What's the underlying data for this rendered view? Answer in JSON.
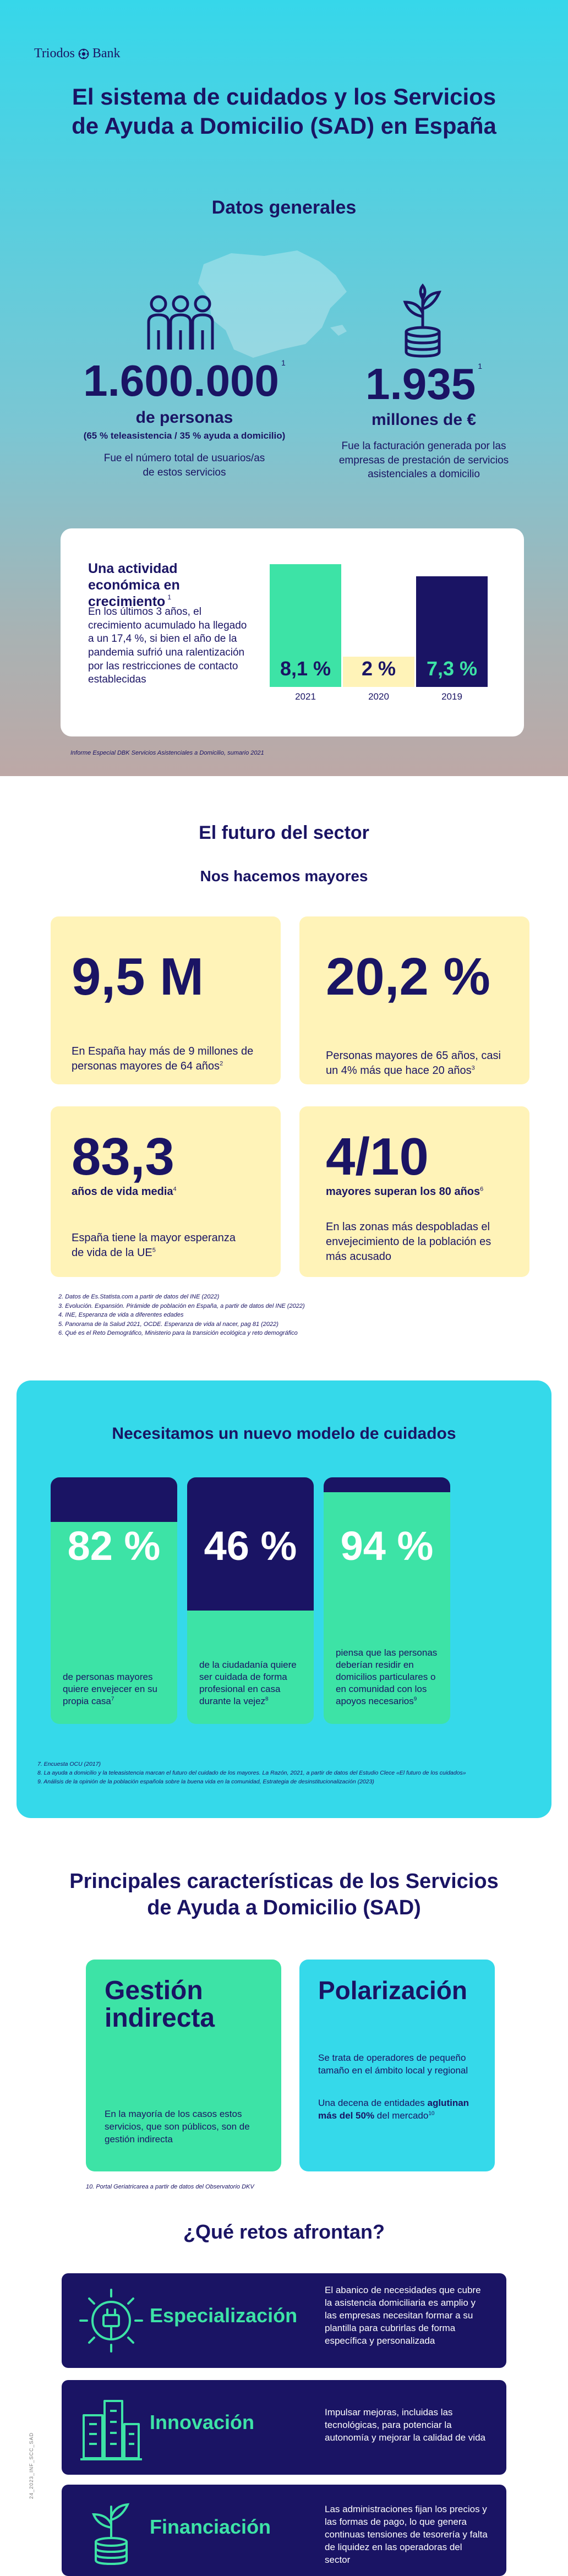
{
  "brand": {
    "name": "Triodos",
    "name2": "Bank"
  },
  "hero": {
    "title_line1": "El sistema de cuidados y los Servicios",
    "title_line2": "de Ayuda a Domicilio (SAD) en España"
  },
  "general": {
    "heading": "Datos generales",
    "users": {
      "value": "1.600.000",
      "sup": "1",
      "unit": "de personas",
      "breakdown": "(65 % teleasistencia / 35 % ayuda a domicilio)",
      "desc_line1": "Fue el número total de usuarios/as",
      "desc_line2": "de estos servicios"
    },
    "revenue": {
      "value": "1.935",
      "sup": "1",
      "unit": "millones de €",
      "desc_line1": "Fue la facturación generada por las",
      "desc_line2": "empresas de prestación de servicios",
      "desc_line3": "asistenciales a domicilio"
    },
    "activity": {
      "title": "Una actividad económica en crecimiento",
      "title_sup": "1",
      "desc": "En los últimos 3 años, el crecimiento acumulado ha llegado a un 17,4 %, si bien el año de la pandemia sufrió una ralentización por las restricciones de contacto establecidas"
    },
    "source": "Informe Especial DBK Servicios Asistenciales a Domicilio, sumario 2021"
  },
  "chart_data": {
    "type": "bar",
    "categories": [
      "2021",
      "2020",
      "2019"
    ],
    "values": [
      8.1,
      2,
      7.3
    ],
    "labels": [
      "8,1 %",
      "2 %",
      "7,3 %"
    ],
    "colors": [
      "#3de3a6",
      "#fff3b8",
      "#1a1464"
    ],
    "label_colors": [
      "#1a1464",
      "#1a1464",
      "#3de3a6"
    ],
    "ylim": [
      0,
      9
    ]
  },
  "future": {
    "heading": "El futuro del sector",
    "subheading": "Nos hacemos mayores",
    "cards": [
      {
        "num": "9,5 M",
        "bold": "",
        "sup": "2",
        "text": "En España hay más de 9 millones de personas mayores de 64 años"
      },
      {
        "num": "20,2 %",
        "bold": "",
        "sup": "3",
        "text": "Personas mayores de 65 años, casi un 4% más que hace 20 años"
      },
      {
        "num": "83,3",
        "bold": "años de vida media",
        "bold_sup": "4",
        "sup": "5",
        "text": "España tiene la mayor esperanza de vida de la UE"
      },
      {
        "num": "4/10",
        "bold": "mayores superan los 80 años",
        "bold_sup": "6",
        "sup": "",
        "text": "En las zonas más despobladas el envejecimiento de la población es más acusado"
      }
    ],
    "notes": [
      "2. Datos de Es.Statista.com a partir de datos del INE (2022)",
      "3. Evolución. Expansión. Pirámide de población en España, a partir de datos del INE (2022)",
      "4. INE, Esperanza de vida a diferentes edades",
      "5. Panorama de la Salud 2021, OCDE. Esperanza de vida al nacer, pag 81 (2022)",
      "6. Qué es el Reto Demográfico, Ministerio para la transición ecológica y reto demográfico"
    ]
  },
  "model": {
    "heading": "Necesitamos un nuevo modelo de cuidados",
    "columns": [
      {
        "value": "82 %",
        "fill": 0.18,
        "text": "de personas mayores quiere envejecer en su propia casa",
        "sup": "7"
      },
      {
        "value": "46 %",
        "fill": 0.54,
        "text": "de la ciudadanía quiere ser cuidada de forma profesional en casa durante la vejez",
        "sup": "8"
      },
      {
        "value": "94 %",
        "fill": 0.06,
        "text": "piensa que las personas deberían residir en domicilios particulares o en comunidad con los apoyos necesarios",
        "sup": "9"
      }
    ],
    "notes": [
      "7. Encuesta OCU (2017)",
      "8. La ayuda a domicilio y la teleasistencia marcan el futuro del cuidado de los mayores. La Razón, 2021, a partir de datos del Estudio Clece «El futuro de los cuidados»",
      "9. Análisis de la opinión de la población española sobre la buena vida en la comunidad, Estrategia de desinstitucionalización (2023)"
    ]
  },
  "characteristics": {
    "heading_line1": "Principales características de los Servicios",
    "heading_line2": "de Ayuda a Domicilio (SAD)",
    "gestion": {
      "title_line1": "Gestión",
      "title_line2": "indirecta",
      "text": "En la mayoría de los casos estos servicios, que son públicos, son de gestión indirecta"
    },
    "polarizacion": {
      "title": "Polarización",
      "text1": "Se trata de operadores de pequeño tamaño en el ámbito local y regional",
      "text2_a": "Una decena de entidades ",
      "text2_b": "aglutinan más del 50%",
      "text2_c": " del mercado",
      "sup": "10"
    },
    "note": "10. Portal Geriatricarea a partir de datos del Observatorio DKV"
  },
  "challenges": {
    "heading": "¿Qué retos afrontan?",
    "items": [
      {
        "title": "Especialización",
        "icon": "plug-icon",
        "text": "El abanico de necesidades que cubre la asistencia domiciliaria es amplio y las empresas necesitan formar a su plantilla para cubrirlas de forma específica y personalizada"
      },
      {
        "title": "Innovación",
        "icon": "buildings-icon",
        "text": "Impulsar mejoras, incluidas las tecnológicas, para potenciar la autonomía y mejorar la calidad de vida"
      },
      {
        "title": "Financiación",
        "icon": "coins-plant-icon",
        "text": "Las administraciones fijan los precios y las formas de pago, lo que genera continuas tensiones de tesorería y falta de liquidez en las operadoras del sector"
      }
    ]
  },
  "side_code": "24_2023_INF_SCC_SAD",
  "colors": {
    "navy": "#1a1464",
    "cyan": "#35d9ea",
    "green": "#3de3a6",
    "yellow": "#fff3b8"
  }
}
